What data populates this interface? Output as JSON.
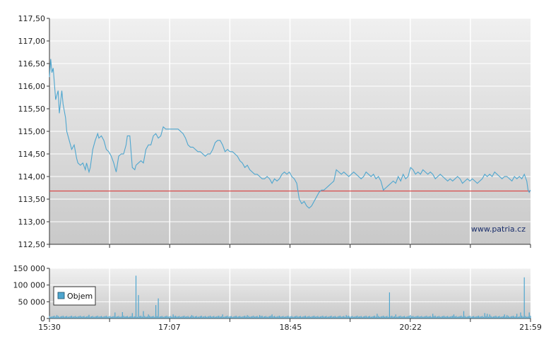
{
  "watermark": "www.patria.cz",
  "legend": {
    "label": "Objem"
  },
  "colors": {
    "price_line": "#4ea6cf",
    "reference_line": "#d84b4b",
    "volume_bar": "#4ea6cf",
    "grid": "#ffffff",
    "plot_bg_top": "#f0f0f0",
    "plot_bg_bottom": "#c9c9c9"
  },
  "chart_data": [
    {
      "type": "line",
      "name": "price",
      "ylim": [
        112.5,
        117.5
      ],
      "yticks": [
        "117,50",
        "117,00",
        "116,50",
        "116,00",
        "115,50",
        "115,00",
        "114,50",
        "114,00",
        "113,50",
        "113,00",
        "112,50"
      ],
      "ytick_values": [
        117.5,
        117.0,
        116.5,
        116.0,
        115.5,
        115.0,
        114.5,
        114.0,
        113.5,
        113.0,
        112.5
      ],
      "reference_line": 113.68,
      "grid": true,
      "x_start_minutes": 930,
      "x_end_minutes": 1319,
      "points": [
        [
          930,
          116.2
        ],
        [
          931,
          116.6
        ],
        [
          932,
          116.3
        ],
        [
          933,
          116.4
        ],
        [
          935,
          115.7
        ],
        [
          937,
          115.9
        ],
        [
          938,
          115.4
        ],
        [
          940,
          115.9
        ],
        [
          941,
          115.6
        ],
        [
          943,
          115.3
        ],
        [
          944,
          115.0
        ],
        [
          946,
          114.8
        ],
        [
          948,
          114.6
        ],
        [
          950,
          114.7
        ],
        [
          952,
          114.4
        ],
        [
          953,
          114.3
        ],
        [
          955,
          114.25
        ],
        [
          957,
          114.3
        ],
        [
          959,
          114.15
        ],
        [
          960,
          114.3
        ],
        [
          962,
          114.1
        ],
        [
          963,
          114.2
        ],
        [
          965,
          114.6
        ],
        [
          967,
          114.8
        ],
        [
          969,
          114.95
        ],
        [
          970,
          114.85
        ],
        [
          972,
          114.9
        ],
        [
          974,
          114.8
        ],
        [
          976,
          114.6
        ],
        [
          978,
          114.55
        ],
        [
          980,
          114.45
        ],
        [
          982,
          114.3
        ],
        [
          984,
          114.1
        ],
        [
          986,
          114.45
        ],
        [
          988,
          114.5
        ],
        [
          990,
          114.5
        ],
        [
          992,
          114.7
        ],
        [
          993,
          114.9
        ],
        [
          995,
          114.9
        ],
        [
          997,
          114.2
        ],
        [
          999,
          114.15
        ],
        [
          1000,
          114.25
        ],
        [
          1002,
          114.3
        ],
        [
          1004,
          114.35
        ],
        [
          1006,
          114.3
        ],
        [
          1008,
          114.6
        ],
        [
          1010,
          114.7
        ],
        [
          1012,
          114.7
        ],
        [
          1014,
          114.9
        ],
        [
          1016,
          114.95
        ],
        [
          1018,
          114.85
        ],
        [
          1020,
          114.9
        ],
        [
          1022,
          115.1
        ],
        [
          1024,
          115.05
        ],
        [
          1026,
          115.05
        ],
        [
          1030,
          115.05
        ],
        [
          1034,
          115.05
        ],
        [
          1038,
          114.95
        ],
        [
          1040,
          114.85
        ],
        [
          1042,
          114.7
        ],
        [
          1044,
          114.65
        ],
        [
          1046,
          114.65
        ],
        [
          1048,
          114.6
        ],
        [
          1050,
          114.55
        ],
        [
          1052,
          114.55
        ],
        [
          1054,
          114.5
        ],
        [
          1056,
          114.45
        ],
        [
          1058,
          114.5
        ],
        [
          1060,
          114.5
        ],
        [
          1062,
          114.6
        ],
        [
          1064,
          114.75
        ],
        [
          1066,
          114.8
        ],
        [
          1068,
          114.8
        ],
        [
          1070,
          114.7
        ],
        [
          1072,
          114.55
        ],
        [
          1074,
          114.6
        ],
        [
          1076,
          114.55
        ],
        [
          1078,
          114.55
        ],
        [
          1080,
          114.5
        ],
        [
          1082,
          114.45
        ],
        [
          1084,
          114.35
        ],
        [
          1086,
          114.3
        ],
        [
          1088,
          114.2
        ],
        [
          1090,
          114.25
        ],
        [
          1092,
          114.15
        ],
        [
          1094,
          114.1
        ],
        [
          1096,
          114.05
        ],
        [
          1098,
          114.05
        ],
        [
          1100,
          114.0
        ],
        [
          1102,
          113.95
        ],
        [
          1104,
          113.95
        ],
        [
          1106,
          114.0
        ],
        [
          1108,
          113.95
        ],
        [
          1110,
          113.85
        ],
        [
          1112,
          113.95
        ],
        [
          1114,
          113.9
        ],
        [
          1116,
          113.95
        ],
        [
          1118,
          114.05
        ],
        [
          1120,
          114.1
        ],
        [
          1122,
          114.05
        ],
        [
          1124,
          114.1
        ],
        [
          1126,
          114.0
        ],
        [
          1128,
          113.95
        ],
        [
          1130,
          113.85
        ],
        [
          1132,
          113.5
        ],
        [
          1134,
          113.4
        ],
        [
          1136,
          113.45
        ],
        [
          1138,
          113.35
        ],
        [
          1140,
          113.3
        ],
        [
          1142,
          113.35
        ],
        [
          1144,
          113.45
        ],
        [
          1146,
          113.55
        ],
        [
          1148,
          113.65
        ],
        [
          1150,
          113.7
        ],
        [
          1152,
          113.7
        ],
        [
          1154,
          113.75
        ],
        [
          1156,
          113.8
        ],
        [
          1158,
          113.85
        ],
        [
          1160,
          113.9
        ],
        [
          1162,
          114.15
        ],
        [
          1164,
          114.1
        ],
        [
          1166,
          114.05
        ],
        [
          1168,
          114.1
        ],
        [
          1170,
          114.05
        ],
        [
          1172,
          114.0
        ],
        [
          1174,
          114.05
        ],
        [
          1176,
          114.1
        ],
        [
          1178,
          114.05
        ],
        [
          1180,
          114.0
        ],
        [
          1182,
          113.95
        ],
        [
          1184,
          114.0
        ],
        [
          1186,
          114.1
        ],
        [
          1188,
          114.05
        ],
        [
          1190,
          114.0
        ],
        [
          1192,
          114.05
        ],
        [
          1194,
          113.95
        ],
        [
          1196,
          114.0
        ],
        [
          1198,
          113.9
        ],
        [
          1200,
          113.7
        ],
        [
          1202,
          113.75
        ],
        [
          1204,
          113.8
        ],
        [
          1206,
          113.85
        ],
        [
          1208,
          113.9
        ],
        [
          1210,
          113.85
        ],
        [
          1212,
          114.0
        ],
        [
          1214,
          113.9
        ],
        [
          1216,
          114.05
        ],
        [
          1218,
          113.95
        ],
        [
          1220,
          114.0
        ],
        [
          1222,
          114.2
        ],
        [
          1224,
          114.15
        ],
        [
          1226,
          114.05
        ],
        [
          1228,
          114.1
        ],
        [
          1230,
          114.05
        ],
        [
          1232,
          114.15
        ],
        [
          1234,
          114.1
        ],
        [
          1236,
          114.05
        ],
        [
          1238,
          114.1
        ],
        [
          1240,
          114.05
        ],
        [
          1242,
          113.95
        ],
        [
          1244,
          114.0
        ],
        [
          1246,
          114.05
        ],
        [
          1248,
          114.0
        ],
        [
          1250,
          113.95
        ],
        [
          1252,
          113.9
        ],
        [
          1254,
          113.95
        ],
        [
          1256,
          113.9
        ],
        [
          1258,
          113.95
        ],
        [
          1260,
          114.0
        ],
        [
          1262,
          113.95
        ],
        [
          1264,
          113.85
        ],
        [
          1266,
          113.9
        ],
        [
          1268,
          113.95
        ],
        [
          1270,
          113.9
        ],
        [
          1272,
          113.95
        ],
        [
          1274,
          113.9
        ],
        [
          1276,
          113.85
        ],
        [
          1278,
          113.9
        ],
        [
          1280,
          113.95
        ],
        [
          1282,
          114.05
        ],
        [
          1284,
          114.0
        ],
        [
          1286,
          114.05
        ],
        [
          1288,
          114.0
        ],
        [
          1290,
          114.1
        ],
        [
          1292,
          114.05
        ],
        [
          1294,
          114.0
        ],
        [
          1296,
          113.95
        ],
        [
          1298,
          114.0
        ],
        [
          1300,
          114.0
        ],
        [
          1302,
          113.95
        ],
        [
          1304,
          113.9
        ],
        [
          1306,
          114.0
        ],
        [
          1308,
          113.95
        ],
        [
          1310,
          114.0
        ],
        [
          1312,
          113.95
        ],
        [
          1314,
          114.05
        ],
        [
          1316,
          113.9
        ],
        [
          1317,
          113.7
        ],
        [
          1318,
          113.65
        ],
        [
          1319,
          113.7
        ]
      ]
    },
    {
      "type": "bar",
      "name": "Objem",
      "ylim": [
        0,
        150000
      ],
      "yticks": [
        "150 000",
        "100 000",
        "50 000",
        "0"
      ],
      "ytick_values": [
        150000,
        100000,
        50000,
        0
      ],
      "xtick_labels": [
        "15:30",
        "17:07",
        "18:45",
        "20:22",
        "21:59"
      ],
      "xtick_minutes": [
        930,
        1027,
        1125,
        1222,
        1319
      ],
      "baseline_volume": 8000,
      "spikes": [
        [
          936,
          10000
        ],
        [
          962,
          11000
        ],
        [
          983,
          18000
        ],
        [
          989,
          19000
        ],
        [
          997,
          16000
        ],
        [
          1000,
          128000
        ],
        [
          1002,
          70000
        ],
        [
          1006,
          22000
        ],
        [
          1010,
          12000
        ],
        [
          1016,
          40000
        ],
        [
          1018,
          60000
        ],
        [
          1030,
          12000
        ],
        [
          1045,
          10000
        ],
        [
          1070,
          12000
        ],
        [
          1090,
          10000
        ],
        [
          1100,
          10000
        ],
        [
          1110,
          12000
        ],
        [
          1170,
          10000
        ],
        [
          1195,
          14000
        ],
        [
          1205,
          78000
        ],
        [
          1210,
          12000
        ],
        [
          1222,
          10000
        ],
        [
          1240,
          14000
        ],
        [
          1257,
          12000
        ],
        [
          1265,
          22000
        ],
        [
          1282,
          16000
        ],
        [
          1284,
          14000
        ],
        [
          1286,
          12000
        ],
        [
          1298,
          12000
        ],
        [
          1300,
          10000
        ],
        [
          1308,
          14000
        ],
        [
          1311,
          18000
        ],
        [
          1314,
          123000
        ],
        [
          1318,
          18000
        ]
      ]
    }
  ]
}
